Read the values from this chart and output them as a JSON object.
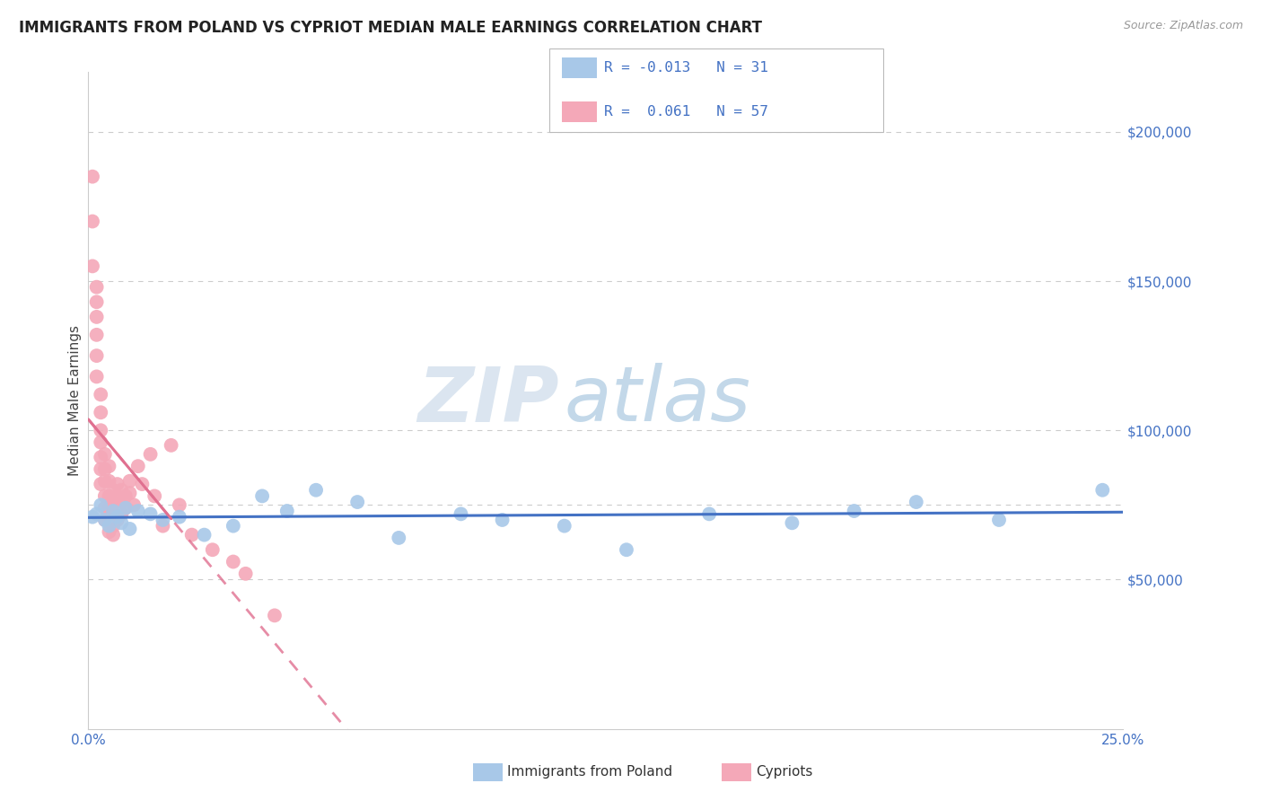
{
  "title": "IMMIGRANTS FROM POLAND VS CYPRIOT MEDIAN MALE EARNINGS CORRELATION CHART",
  "source": "Source: ZipAtlas.com",
  "ylabel": "Median Male Earnings",
  "xlim": [
    0.0,
    0.25
  ],
  "ylim": [
    0,
    220000
  ],
  "xtick_positions": [
    0.0,
    0.05,
    0.1,
    0.15,
    0.2,
    0.25
  ],
  "xticklabels": [
    "0.0%",
    "",
    "",
    "",
    "",
    "25.0%"
  ],
  "ytick_positions": [
    50000,
    100000,
    150000,
    200000
  ],
  "ytick_labels": [
    "$50,000",
    "$100,000",
    "$150,000",
    "$200,000"
  ],
  "blue_color": "#a8c8e8",
  "pink_color": "#f4a8b8",
  "blue_line_color": "#4472c4",
  "pink_line_color": "#e07090",
  "grid_color": "#cccccc",
  "watermark_zip_color": "#c0d0e0",
  "watermark_atlas_color": "#b8cce4",
  "blue_scatter_x": [
    0.001,
    0.002,
    0.003,
    0.004,
    0.005,
    0.006,
    0.007,
    0.008,
    0.009,
    0.01,
    0.012,
    0.015,
    0.018,
    0.022,
    0.028,
    0.035,
    0.042,
    0.048,
    0.055,
    0.065,
    0.075,
    0.09,
    0.1,
    0.115,
    0.13,
    0.15,
    0.17,
    0.185,
    0.2,
    0.22,
    0.245
  ],
  "blue_scatter_y": [
    71000,
    72000,
    75000,
    70000,
    68000,
    73000,
    71000,
    69000,
    74000,
    67000,
    73000,
    72000,
    70000,
    71000,
    65000,
    68000,
    78000,
    73000,
    80000,
    76000,
    64000,
    72000,
    70000,
    68000,
    60000,
    72000,
    69000,
    73000,
    76000,
    70000,
    80000
  ],
  "pink_scatter_x": [
    0.001,
    0.001,
    0.001,
    0.002,
    0.002,
    0.002,
    0.002,
    0.002,
    0.002,
    0.003,
    0.003,
    0.003,
    0.003,
    0.003,
    0.003,
    0.003,
    0.004,
    0.004,
    0.004,
    0.004,
    0.004,
    0.004,
    0.005,
    0.005,
    0.005,
    0.005,
    0.005,
    0.005,
    0.006,
    0.006,
    0.006,
    0.006,
    0.006,
    0.007,
    0.007,
    0.007,
    0.007,
    0.008,
    0.008,
    0.008,
    0.009,
    0.009,
    0.01,
    0.01,
    0.011,
    0.012,
    0.013,
    0.015,
    0.016,
    0.018,
    0.02,
    0.022,
    0.025,
    0.03,
    0.035,
    0.038,
    0.045
  ],
  "pink_scatter_y": [
    185000,
    170000,
    155000,
    148000,
    143000,
    138000,
    132000,
    125000,
    118000,
    112000,
    106000,
    100000,
    96000,
    91000,
    87000,
    82000,
    92000,
    87000,
    83000,
    78000,
    74000,
    70000,
    88000,
    83000,
    78000,
    74000,
    70000,
    66000,
    80000,
    76000,
    72000,
    68000,
    65000,
    82000,
    78000,
    74000,
    70000,
    80000,
    76000,
    72000,
    78000,
    74000,
    83000,
    79000,
    75000,
    88000,
    82000,
    92000,
    78000,
    68000,
    95000,
    75000,
    65000,
    60000,
    56000,
    52000,
    38000
  ],
  "legend_blue_r": "R = -0.013",
  "legend_blue_n": "N = 31",
  "legend_pink_r": "R =  0.061",
  "legend_pink_n": "N = 57"
}
